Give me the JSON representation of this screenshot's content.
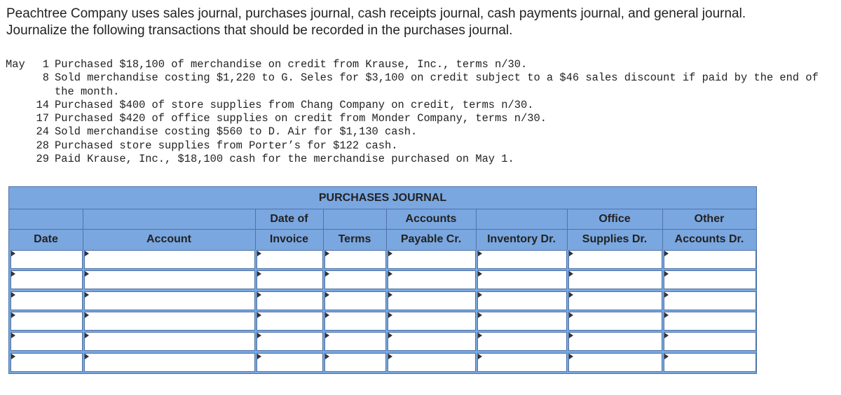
{
  "intro": [
    "Peachtree Company uses sales journal, purchases journal, cash receipts journal, cash payments journal, and general journal.",
    "Journalize the following transactions that should be recorded in the purchases journal."
  ],
  "transactions": {
    "month": "May",
    "items": [
      {
        "day": "1",
        "text": "Purchased $18,100 of merchandise on credit from Krause, Inc., terms n/30."
      },
      {
        "day": "8",
        "text": "Sold merchandise costing $1,220 to G. Seles for $3,100 on credit subject to a $46 sales discount if paid by the end of the month."
      },
      {
        "day": "14",
        "text": "Purchased $400 of store supplies from Chang Company on credit, terms n/30."
      },
      {
        "day": "17",
        "text": "Purchased $420 of office supplies on credit from Monder Company, terms n/30."
      },
      {
        "day": "24",
        "text": "Sold merchandise costing $560 to D. Air for $1,130 cash."
      },
      {
        "day": "28",
        "text": "Purchased store supplies from Porter’s for $122 cash."
      },
      {
        "day": "29",
        "text": "Paid Krause, Inc., $18,100 cash for the merchandise purchased on May 1."
      }
    ]
  },
  "journal": {
    "title": "PURCHASES JOURNAL",
    "columns": [
      {
        "bottom": "Date"
      },
      {
        "bottom": "Account"
      },
      {
        "top": "Date of",
        "bottom": "Invoice"
      },
      {
        "bottom": "Terms"
      },
      {
        "top": "Accounts",
        "bottom": "Payable Cr."
      },
      {
        "bottom": "Inventory Dr."
      },
      {
        "top": "Office",
        "bottom": "Supplies Dr."
      },
      {
        "top": "Other",
        "bottom": "Accounts Dr."
      }
    ]
  }
}
